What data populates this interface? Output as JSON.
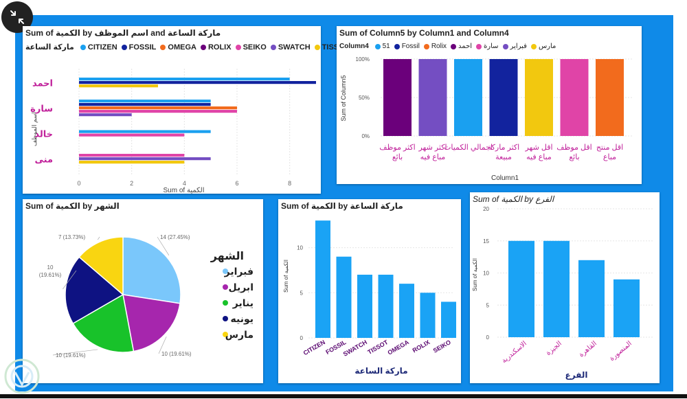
{
  "colors": {
    "canvas": "#0f8ae8",
    "CITIZEN": "#1aa0f0",
    "FOSSIL": "#12239e",
    "OMEGA": "#f26b1d",
    "ROLIX": "#6b007b",
    "SEIKO": "#e044a7",
    "SWATCH": "#744ec2",
    "TISSOT": "#f2c80f",
    "bar_blue": "#1aa3f5",
    "label_pink": "#c0209a",
    "label_navy": "#1e2a78"
  },
  "icons": {
    "corner": "collapse-arrows-icon",
    "watermark": "logo-watermark-icon"
  },
  "chart_data": [
    {
      "type": "bar",
      "orientation": "horizontal",
      "title": "Sum of الكمية by اسم الموظف and ماركة الساعة",
      "legend_title": "ماركة الساعة",
      "legend_position": "top",
      "categories": [
        "احمد",
        "سارة",
        "خالد",
        "منى"
      ],
      "xlabel": "Sum of الكمية",
      "ylabel": "اسم الموظف",
      "xlim": [
        0,
        9
      ],
      "xticks": [
        "0",
        "2",
        "4",
        "6",
        "8"
      ],
      "series": [
        {
          "name": "CITIZEN",
          "values": [
            8,
            5,
            5,
            null
          ]
        },
        {
          "name": "FOSSIL",
          "values": [
            9,
            5,
            null,
            null
          ]
        },
        {
          "name": "OMEGA",
          "values": [
            null,
            6,
            null,
            null
          ]
        },
        {
          "name": "ROLIX",
          "values": [
            null,
            null,
            null,
            null
          ]
        },
        {
          "name": "SEIKO",
          "values": [
            null,
            6,
            4,
            4
          ]
        },
        {
          "name": "SWATCH",
          "values": [
            null,
            2,
            null,
            5
          ]
        },
        {
          "name": "TISSOT",
          "values": [
            3,
            null,
            null,
            4
          ]
        }
      ]
    },
    {
      "type": "bar",
      "title": "Sum of Column5 by Column1 and Column4",
      "legend_title": "Column4",
      "legend_position": "top",
      "legend": [
        {
          "name": "51",
          "color": "#1aa0f0"
        },
        {
          "name": "Fossil",
          "color": "#12239e"
        },
        {
          "name": "Rolix",
          "color": "#f26b1d"
        },
        {
          "name": "احمد",
          "color": "#6b007b"
        },
        {
          "name": "سارة",
          "color": "#e044a7"
        },
        {
          "name": "فبراير",
          "color": "#744ec2"
        },
        {
          "name": "مارس",
          "color": "#f2c80f"
        }
      ],
      "categories": [
        "اكثر موظف بائع",
        "اكثر شهر مباع فيه",
        "اجمالي الكميات",
        "اكثر ماركة مبيعة",
        "اقل شهر مباع فيه",
        "اقل موظف بائع",
        "اقل منتج مباع"
      ],
      "values": [
        100,
        100,
        100,
        100,
        100,
        100,
        100
      ],
      "bar_colors": [
        "#6b007b",
        "#744ec2",
        "#1aa0f0",
        "#12239e",
        "#f2c80f",
        "#e044a7",
        "#f26b1d"
      ],
      "xlabel": "Column1",
      "ylabel": "Sum of Column5",
      "ylim": [
        0,
        100
      ],
      "yticks": [
        "0%",
        "50%",
        "100%"
      ]
    },
    {
      "type": "pie",
      "title": "Sum of الكمية by الشهر",
      "legend_title": "الشهر",
      "legend_position": "right",
      "slices": [
        {
          "name": "فبراير",
          "value": 14,
          "label": "14 (27.45%)",
          "color": "#7ac7fb"
        },
        {
          "name": "ابريل",
          "value": 10,
          "label": "10 (19.61%)",
          "color": "#a626ad"
        },
        {
          "name": "يناير",
          "value": 10,
          "label": "10 (19.61%)",
          "color": "#18c22a"
        },
        {
          "name": "يونيه",
          "value": 10,
          "label": "10 (19.61%)",
          "color": "#0e1282"
        },
        {
          "name": "مارس",
          "value": 7,
          "label": "7 (13.73%)",
          "color": "#f9d511"
        }
      ]
    },
    {
      "type": "bar",
      "title": "Sum of الكمية by ماركة الساعة",
      "categories": [
        "CITIZEN",
        "FOSSIL",
        "SWATCH",
        "TISSOT",
        "OMEGA",
        "ROLIX",
        "SEIKO"
      ],
      "values": [
        13,
        9,
        7,
        7,
        6,
        5,
        4
      ],
      "xlabel": "ماركة الساعة",
      "ylabel": "Sum of الكمية",
      "ylim": [
        0,
        14
      ],
      "yticks": [
        "0",
        "5",
        "10"
      ]
    },
    {
      "type": "bar",
      "title": "Sum of الكمية by الفرع",
      "categories": [
        "الاسكندرية",
        "الجيزة",
        "القاهرة",
        "المنصورة"
      ],
      "values": [
        15,
        15,
        12,
        9
      ],
      "xlabel": "الفرع",
      "ylabel": "Sum of الكمية",
      "ylim": [
        0,
        20
      ],
      "yticks": [
        "0",
        "5",
        "10",
        "15",
        "20"
      ]
    }
  ]
}
